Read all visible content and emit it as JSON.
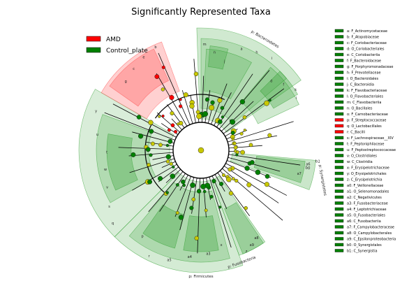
{
  "chart_data": {
    "type": "cladogram",
    "title": "Significantly Represented Taxa",
    "legend": [
      {
        "name": "AMD",
        "color": "#ff0000"
      },
      {
        "name": "Control_plate",
        "color": "#008000"
      }
    ],
    "colors": {
      "AMD": "#ff0000",
      "Control_plate": "#008000",
      "control_shade": "#2a9d2a",
      "amd_shade": "#ff4444",
      "neutral_node": "#c8c800",
      "edge": "#000000"
    },
    "band_labels": [
      {
        "key": "p",
        "text": "p: Bacteroidetes",
        "group": "Control_plate"
      },
      {
        "key": "p",
        "text": "p: Firmicutes",
        "group": "Control_plate"
      },
      {
        "key": "p",
        "text": "p: Fusobacteria",
        "group": "Control_plate"
      },
      {
        "key": "b0",
        "text": "b0",
        "group": "Control_plate"
      },
      {
        "key": "b1",
        "text": "b1",
        "group": "Control_plate"
      },
      {
        "key": "p: Synergistetes",
        "text": "p: Synergistetes",
        "group": "Control_plate"
      }
    ],
    "sector_letters": [
      "m",
      "n",
      "j",
      "a",
      "h",
      "i",
      "d",
      "f",
      "k",
      "l",
      "a6",
      "a7",
      "a8",
      "a9",
      "z",
      "x",
      "a3",
      "a4",
      "a5",
      "r",
      "p",
      "q",
      "s",
      "v",
      "w",
      "t",
      "u",
      "y",
      "g",
      "c",
      "e",
      "b"
    ],
    "taxa": [
      {
        "key": "a",
        "label": "a: F_Actinomycetaceae",
        "group": "Control_plate"
      },
      {
        "key": "b",
        "label": "b: F_Atopobiaceae",
        "group": "Control_plate"
      },
      {
        "key": "c",
        "label": "c: F_Coriobacteriaceae",
        "group": "Control_plate"
      },
      {
        "key": "d",
        "label": "d: O_Coriobacteriales",
        "group": "Control_plate"
      },
      {
        "key": "e",
        "label": "e: C_Coriobacteriia",
        "group": "Control_plate"
      },
      {
        "key": "f",
        "label": "f: F_Bacteroidaceae",
        "group": "Control_plate"
      },
      {
        "key": "g",
        "label": "g: F_Porphyromonadaceae",
        "group": "Control_plate"
      },
      {
        "key": "h",
        "label": "h: F_Prevotellaceae",
        "group": "Control_plate"
      },
      {
        "key": "i",
        "label": "i: O_Bacteroidales",
        "group": "Control_plate"
      },
      {
        "key": "j",
        "label": "j: C_Bacteroidia",
        "group": "Control_plate"
      },
      {
        "key": "k",
        "label": "k: F_Flavobacteriaceae",
        "group": "Control_plate"
      },
      {
        "key": "l",
        "label": "l: O_Flavobacteriales",
        "group": "Control_plate"
      },
      {
        "key": "m",
        "label": "m: C_Flavobacteriia",
        "group": "Control_plate"
      },
      {
        "key": "n",
        "label": "n: O_Bacillales",
        "group": "Control_plate"
      },
      {
        "key": "o",
        "label": "o: F_Carnobacteriaceae",
        "group": "Control_plate"
      },
      {
        "key": "p",
        "label": "p: F_Streptococcaceae",
        "group": "AMD"
      },
      {
        "key": "q",
        "label": "q: O_Lactobacillales",
        "group": "AMD"
      },
      {
        "key": "r",
        "label": "r: C_Bacilli",
        "group": "AMD"
      },
      {
        "key": "s",
        "label": "s: F_Lachnospiraceae__XIV",
        "group": "Control_plate"
      },
      {
        "key": "t",
        "label": "t: F_Peptoniphilaceae",
        "group": "Control_plate"
      },
      {
        "key": "u",
        "label": "u: F_Peptostreptococcaceae",
        "group": "Control_plate"
      },
      {
        "key": "v",
        "label": "v: O_Clostridiales",
        "group": "Control_plate"
      },
      {
        "key": "w",
        "label": "w: C_Clostridia",
        "group": "Control_plate"
      },
      {
        "key": "x",
        "label": "x: F_Erysipelotrichaceae",
        "group": "Control_plate"
      },
      {
        "key": "y",
        "label": "y: O_Erysipelotrichales",
        "group": "Control_plate"
      },
      {
        "key": "z",
        "label": "z: C_Erysipelotrichia",
        "group": "Control_plate"
      },
      {
        "key": "a0",
        "label": "a0: F_Veillonellaceae",
        "group": "Control_plate"
      },
      {
        "key": "a1",
        "label": "a1: O_Selenomonadales",
        "group": "Control_plate"
      },
      {
        "key": "a2",
        "label": "a2: C_Negativicutes",
        "group": "Control_plate"
      },
      {
        "key": "a3",
        "label": "a3: F_Fusobacteriaceae",
        "group": "Control_plate"
      },
      {
        "key": "a4",
        "label": "a4: F_Leptotrichiaceae",
        "group": "Control_plate"
      },
      {
        "key": "a5",
        "label": "a5: O_Fusobacteriales",
        "group": "Control_plate"
      },
      {
        "key": "a6",
        "label": "a6: C_Fusobacteriia",
        "group": "Control_plate"
      },
      {
        "key": "a7",
        "label": "a7: F_Campylobacteraceae",
        "group": "Control_plate"
      },
      {
        "key": "a8",
        "label": "a8: O_Campylobacterales",
        "group": "Control_plate"
      },
      {
        "key": "a9",
        "label": "a9: C_Epsilonproteobacteria",
        "group": "Control_plate"
      },
      {
        "key": "b0",
        "label": "b0: O_Synergistales",
        "group": "Control_plate"
      },
      {
        "key": "b1",
        "label": "b1: C_Synergistia",
        "group": "Control_plate"
      }
    ]
  }
}
